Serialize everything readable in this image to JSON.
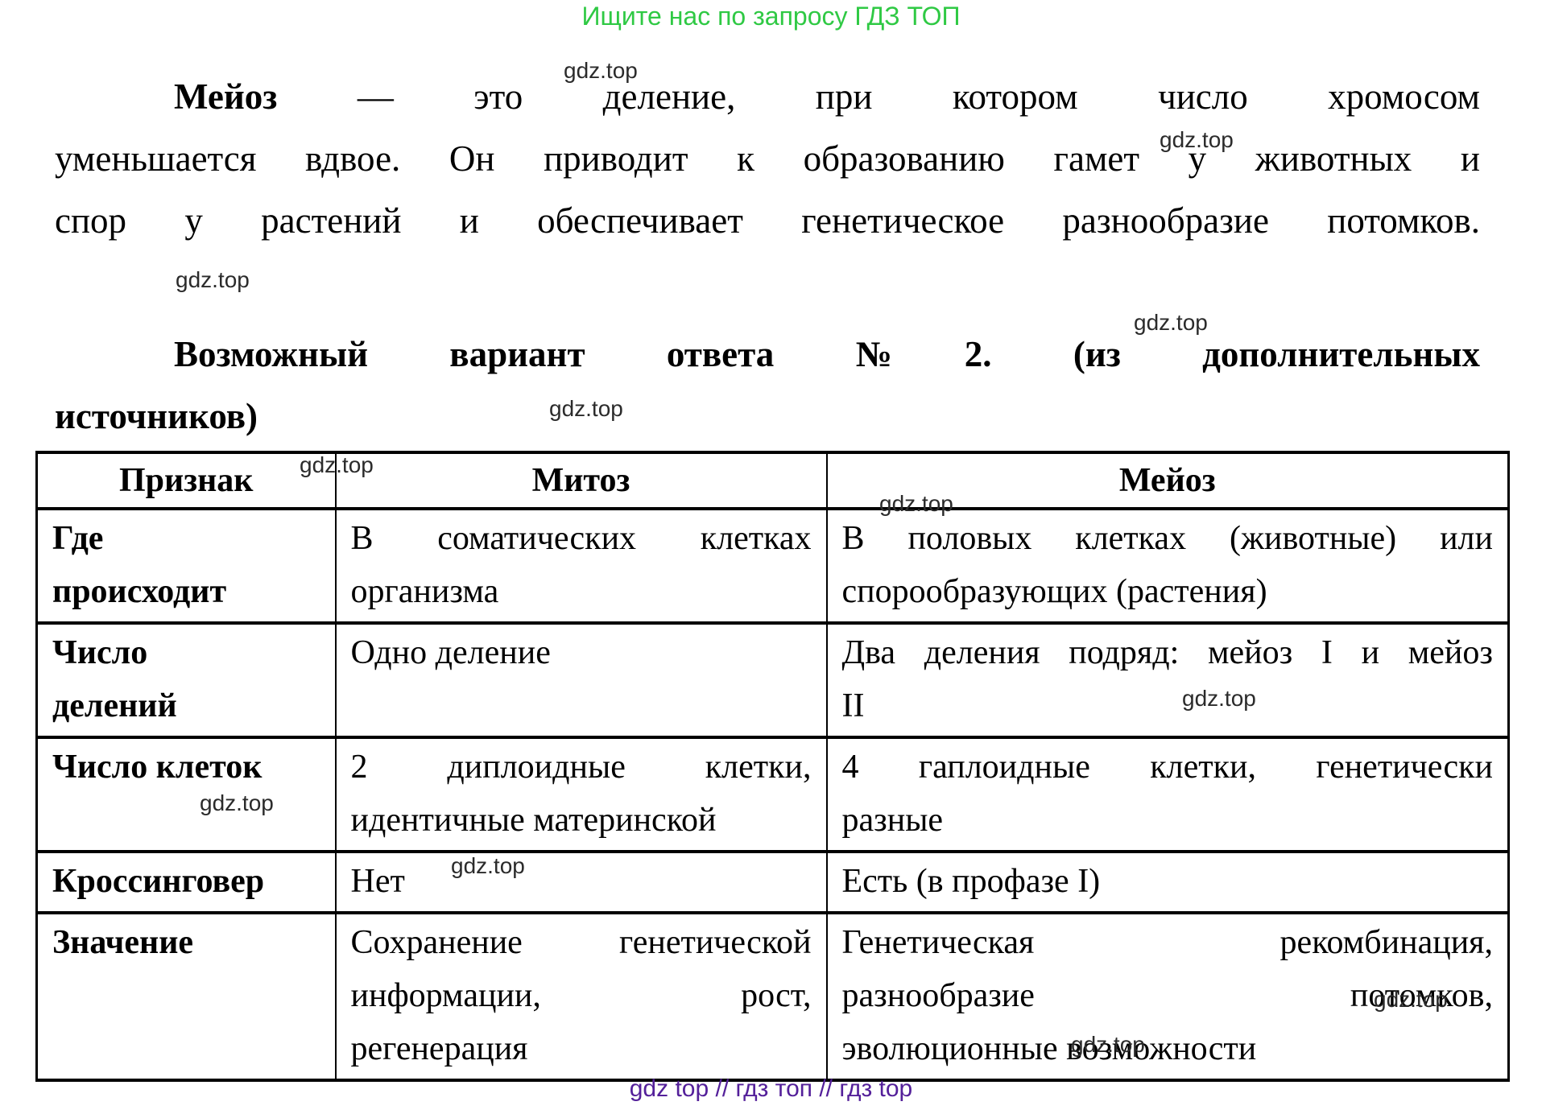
{
  "banner": {
    "text": "Ищите нас по запросу ГДЗ ТОП"
  },
  "paragraph": {
    "lead_word": "Мейоз",
    "line1_rest": "— это деление, при котором число хромосом",
    "line2": "уменьшается вдвое. Он приводит к образованию гамет у животных и",
    "line3": "спор у растений и обеспечивает генетическое разнообразие потомков."
  },
  "heading": {
    "line1": "Возможный вариант ответа №2. (из дополнительных",
    "line2": "источников)"
  },
  "table": {
    "headers": [
      "Признак",
      "Митоз",
      "Мейоз"
    ],
    "rows": [
      {
        "label": "Где\nпроисходит",
        "mitosis": "В соматических клетках\nорганизма",
        "meiosis": "В половых клетках (животные) или\nспорообразующих (растения)"
      },
      {
        "label": "Число\nделений",
        "mitosis": "Одно деление",
        "meiosis": "Два деления подряд: мейоз I и мейоз\nII"
      },
      {
        "label": "Число клеток",
        "mitosis": "2 диплоидные клетки,\nидентичные материнской",
        "meiosis": "4 гаплоидные клетки, генетически\nразные"
      },
      {
        "label": "Кроссинговер",
        "mitosis": "Нет",
        "meiosis": "Есть (в профазе I)"
      },
      {
        "label": "Значение",
        "mitosis": "Сохранение генетической\nинформации, рост,\nрегенерация",
        "meiosis": "Генетическая рекомбинация,\nразнообразие потомков,\nэволюционные возможности"
      }
    ]
  },
  "watermark": {
    "text": "gdz.top"
  },
  "footer": {
    "text": "gdz top  //  гдз топ  //  гдз top"
  },
  "colors": {
    "banner_green": "#2fc944",
    "footer_purple": "#54209a",
    "watermark_gray": "#2b2b2b",
    "table_border": "#000000"
  }
}
